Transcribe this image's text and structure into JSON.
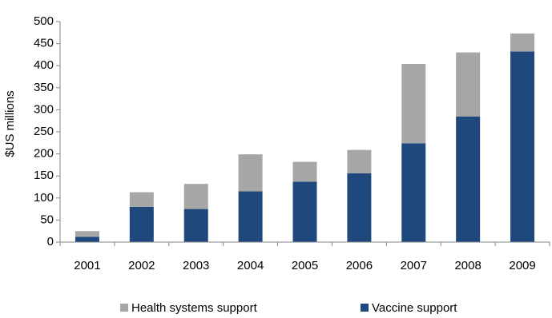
{
  "chart_data": {
    "type": "bar",
    "stacked": true,
    "title": "",
    "xlabel": "",
    "ylabel": "$US millions",
    "ylim": [
      0,
      500
    ],
    "yticks": [
      0,
      50,
      100,
      150,
      200,
      250,
      300,
      350,
      400,
      450,
      500
    ],
    "grid": false,
    "legend_position": "bottom",
    "categories": [
      "2001",
      "2002",
      "2003",
      "2004",
      "2005",
      "2006",
      "2007",
      "2008",
      "2009"
    ],
    "series": [
      {
        "name": "Vaccine support",
        "color": "#1F497D",
        "values": [
          12,
          80,
          75,
          115,
          137,
          156,
          224,
          285,
          432
        ]
      },
      {
        "name": "Health systems support",
        "color": "#A6A6A6",
        "values": [
          13,
          33,
          57,
          84,
          45,
          53,
          180,
          145,
          41
        ]
      }
    ],
    "legend_order": [
      "Health systems support",
      "Vaccine support"
    ]
  }
}
